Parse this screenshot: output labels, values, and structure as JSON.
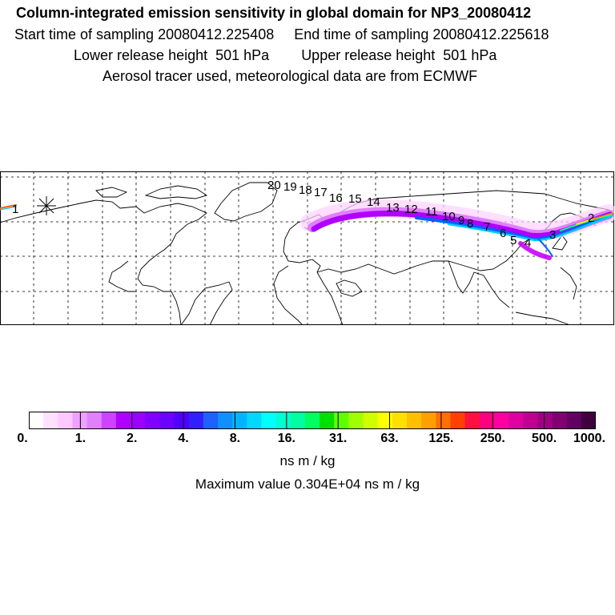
{
  "header": {
    "title": "Column-integrated emission sensitivity in global domain for NP3_20080412",
    "start_label": "Start time of sampling 20080412.225408",
    "end_label": "End time of sampling 20080412.225618",
    "lower_label": "Lower release height  501 hPa",
    "upper_label": "Upper release height  501 hPa",
    "tracer_line": "Aerosol tracer used, meteorological data are from ECMWF"
  },
  "map": {
    "track_labels": [
      "1",
      "2",
      "3",
      "4",
      "5",
      "6",
      "7",
      "8",
      "9",
      "10",
      "11",
      "12",
      "13",
      "14",
      "15",
      "16",
      "17",
      "18",
      "19",
      "20"
    ],
    "grid": "dashed",
    "release_marker": "star",
    "plume_colors": [
      "#ff00ff",
      "#cc00ff",
      "#8000ff",
      "#0060ff",
      "#00c8ff",
      "#00ff80",
      "#ffff00",
      "#ff6000"
    ]
  },
  "colorbar": {
    "colors": [
      "#ffffff",
      "#ffe0ff",
      "#ffc8ff",
      "#f0a0ff",
      "#e080ff",
      "#cc44ff",
      "#b000ff",
      "#9a00ff",
      "#8000ff",
      "#6a00ff",
      "#5000ff",
      "#3020ff",
      "#2060ff",
      "#1090ff",
      "#00b4ff",
      "#00d8ff",
      "#00ffff",
      "#00ffd0",
      "#00ffa0",
      "#00ff60",
      "#00e000",
      "#60ff00",
      "#a0ff00",
      "#d0ff00",
      "#ffff00",
      "#ffe000",
      "#ffc000",
      "#ffa000",
      "#ff7000",
      "#ff4000",
      "#ff1040",
      "#ff0080",
      "#ff00a0",
      "#e000a0",
      "#c00090",
      "#a00080",
      "#800070",
      "#600060",
      "#400040"
    ],
    "ticks": [
      "0.",
      "1.",
      "2.",
      "4.",
      "8.",
      "16.",
      "31.",
      "63.",
      "125.",
      "250.",
      "500.",
      "1000."
    ]
  },
  "units": "ns m / kg",
  "max_value": "Maximum value  0.304E+04 ns m / kg"
}
